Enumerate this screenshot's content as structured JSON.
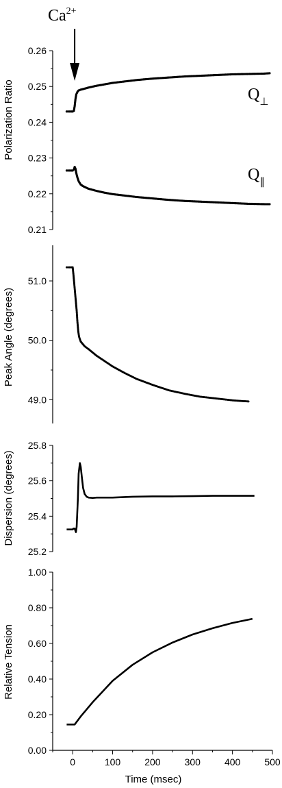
{
  "chart_data": [
    {
      "type": "scatter",
      "ylabel": "Polarization Ratio",
      "xlabel": "",
      "xlim": [
        -50,
        500
      ],
      "ylim": [
        0.21,
        0.26
      ],
      "yticks": [
        "0.21",
        "0.22",
        "0.23",
        "0.24",
        "0.25",
        "0.26"
      ],
      "annotation": {
        "text": "Ca",
        "superscript": "2+",
        "arrow_at_x": 5
      },
      "series": [
        {
          "name": "Q",
          "name_sub": "⊥",
          "x": [
            -15,
            -5,
            0,
            3,
            5,
            7,
            9,
            12,
            15,
            20,
            30,
            40,
            60,
            80,
            100,
            130,
            160,
            200,
            240,
            280,
            320,
            360,
            400,
            440,
            480,
            493
          ],
          "y": [
            0.243,
            0.243,
            0.243,
            0.2432,
            0.2445,
            0.2465,
            0.2478,
            0.2485,
            0.2489,
            0.2491,
            0.2494,
            0.2497,
            0.2502,
            0.2506,
            0.251,
            0.2514,
            0.2518,
            0.2522,
            0.2525,
            0.2528,
            0.253,
            0.2532,
            0.2534,
            0.2535,
            0.2536,
            0.2537
          ]
        },
        {
          "name": "Q",
          "name_sub": "∥",
          "x": [
            -15,
            -5,
            0,
            3,
            5,
            7,
            9,
            12,
            15,
            20,
            25,
            30,
            40,
            60,
            80,
            100,
            130,
            160,
            200,
            240,
            280,
            320,
            360,
            400,
            440,
            480,
            493
          ],
          "y": [
            0.2265,
            0.2265,
            0.2265,
            0.2268,
            0.2275,
            0.227,
            0.2258,
            0.2245,
            0.2235,
            0.2226,
            0.2222,
            0.2219,
            0.2214,
            0.2208,
            0.2203,
            0.2199,
            0.2195,
            0.2191,
            0.2187,
            0.2183,
            0.218,
            0.2178,
            0.2176,
            0.2174,
            0.2172,
            0.2171,
            0.2171
          ]
        }
      ]
    },
    {
      "type": "scatter",
      "ylabel": "Peak Angle (degrees)",
      "xlabel": "",
      "xlim": [
        -50,
        500
      ],
      "ylim": [
        48.6,
        51.6
      ],
      "yticks": [
        "49.0",
        "50.0",
        "51.0"
      ],
      "series": [
        {
          "x": [
            -15,
            -5,
            0,
            2,
            4,
            6,
            8,
            10,
            12,
            14,
            16,
            20,
            25,
            30,
            40,
            60,
            80,
            100,
            130,
            160,
            200,
            240,
            280,
            320,
            360,
            400,
            440
          ],
          "y": [
            51.23,
            51.23,
            51.23,
            51.1,
            50.95,
            50.8,
            50.65,
            50.5,
            50.3,
            50.15,
            50.06,
            49.98,
            49.94,
            49.9,
            49.85,
            49.74,
            49.65,
            49.56,
            49.45,
            49.35,
            49.25,
            49.16,
            49.1,
            49.05,
            49.02,
            48.99,
            48.97
          ]
        }
      ]
    },
    {
      "type": "line",
      "ylabel": "Dispersion (degrees)",
      "xlabel": "",
      "xlim": [
        -50,
        500
      ],
      "ylim": [
        25.2,
        25.8
      ],
      "yticks": [
        "25.2",
        "25.4",
        "25.6",
        "25.8"
      ],
      "series": [
        {
          "x": [
            -15,
            -5,
            0,
            2,
            5,
            8,
            10,
            13,
            15,
            18,
            20,
            23,
            26,
            30,
            35,
            40,
            50,
            60,
            80,
            100,
            150,
            200,
            250,
            300,
            350,
            400,
            450,
            455
          ],
          "y": [
            25.325,
            25.325,
            25.325,
            25.33,
            25.33,
            25.31,
            25.34,
            25.5,
            25.64,
            25.7,
            25.68,
            25.62,
            25.56,
            25.525,
            25.51,
            25.505,
            25.503,
            25.505,
            25.505,
            25.505,
            25.51,
            25.512,
            25.512,
            25.513,
            25.515,
            25.515,
            25.515,
            25.515
          ]
        }
      ]
    },
    {
      "type": "line",
      "ylabel": "Relative Tension",
      "xlabel": "Time (msec)",
      "xlim": [
        -50,
        500
      ],
      "ylim": [
        0.0,
        1.0
      ],
      "xticks": [
        "0",
        "100",
        "200",
        "300",
        "400",
        "500"
      ],
      "yticks": [
        "0.00",
        "0.20",
        "0.40",
        "0.60",
        "0.80",
        "1.00"
      ],
      "series": [
        {
          "x": [
            -15,
            0,
            5,
            20,
            50,
            100,
            150,
            200,
            250,
            300,
            350,
            400,
            450
          ],
          "y": [
            0.145,
            0.145,
            0.145,
            0.19,
            0.27,
            0.39,
            0.48,
            0.55,
            0.605,
            0.65,
            0.685,
            0.715,
            0.738
          ]
        }
      ]
    }
  ]
}
